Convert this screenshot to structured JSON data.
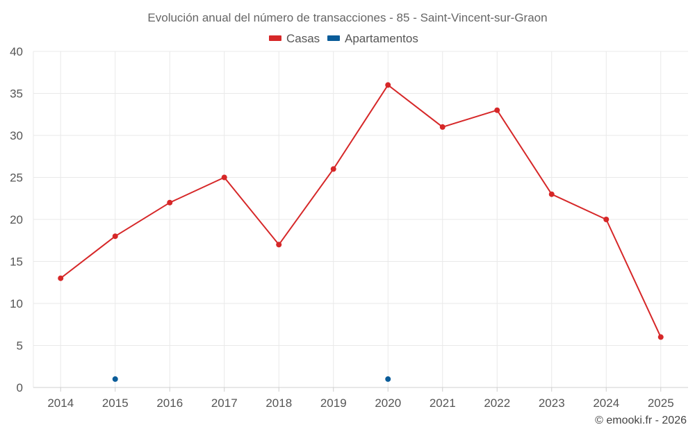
{
  "chart_data": {
    "type": "line",
    "title": "Evolución anual del número de transacciones - 85 - Saint-Vincent-sur-Graon",
    "categories": [
      "2014",
      "2015",
      "2016",
      "2017",
      "2018",
      "2019",
      "2020",
      "2021",
      "2022",
      "2023",
      "2024",
      "2025"
    ],
    "series": [
      {
        "name": "Casas",
        "color": "#d62728",
        "values": [
          13,
          18,
          22,
          25,
          17,
          26,
          36,
          31,
          33,
          23,
          20,
          6
        ]
      },
      {
        "name": "Apartamentos",
        "color": "#0a5c99",
        "values": [
          null,
          1,
          null,
          null,
          null,
          null,
          1,
          null,
          null,
          null,
          null,
          null
        ]
      }
    ],
    "ylim": [
      0,
      40
    ],
    "yticks": [
      0,
      5,
      10,
      15,
      20,
      25,
      30,
      35,
      40
    ],
    "xlabel": "",
    "ylabel": "",
    "grid": true,
    "legend": "top-center"
  },
  "credit": "© emooki.fr - 2026"
}
